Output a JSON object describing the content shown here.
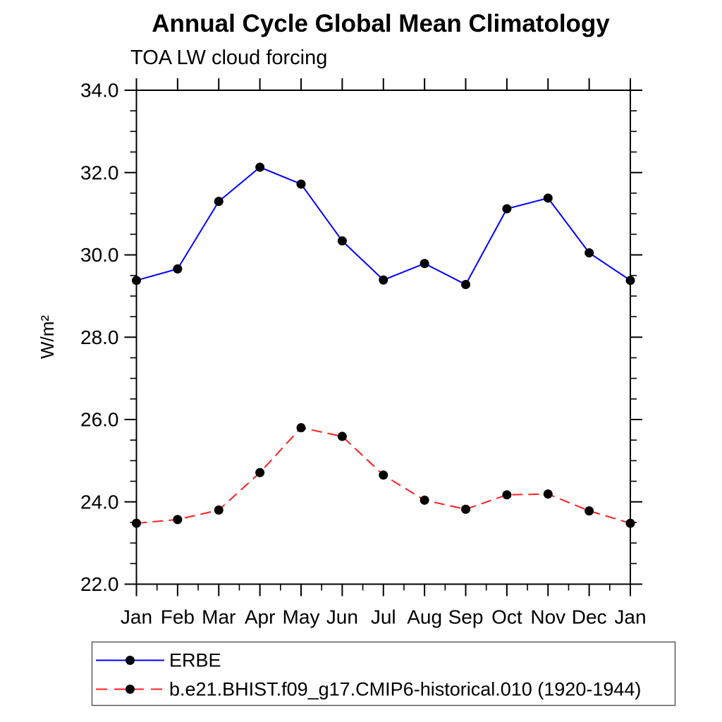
{
  "chart_data": {
    "type": "line",
    "title": "Annual Cycle Global Mean Climatology",
    "subtitle": "TOA LW cloud forcing",
    "ylabel": "W/m²",
    "xlabel": "",
    "categories": [
      "Jan",
      "Feb",
      "Mar",
      "Apr",
      "May",
      "Jun",
      "Jul",
      "Aug",
      "Sep",
      "Oct",
      "Nov",
      "Dec",
      "Jan"
    ],
    "ylim": [
      22.0,
      34.0
    ],
    "y_major_step": 2.0,
    "y_minor_step": 0.5,
    "y_tick_labels": [
      "22.0",
      "24.0",
      "26.0",
      "28.0",
      "30.0",
      "32.0",
      "34.0"
    ],
    "grid": false,
    "legend_position": "bottom-left",
    "background_color": "#ffffff",
    "axis_color": "#000000",
    "marker": {
      "shape": "circle",
      "color": "#000000",
      "radius_px": 6.5
    },
    "series": [
      {
        "name": "ERBE",
        "color": "#0000ff",
        "line_style": "solid",
        "values": [
          29.38,
          29.66,
          31.3,
          32.13,
          31.72,
          30.34,
          29.39,
          29.79,
          29.28,
          31.12,
          31.38,
          30.05,
          29.38
        ]
      },
      {
        "name": "b.e21.BHIST.f09_g17.CMIP6-historical.010 (1920-1944)",
        "color": "#ff2020",
        "line_style": "dashed",
        "values": [
          23.48,
          23.57,
          23.8,
          24.71,
          25.8,
          25.59,
          24.65,
          24.04,
          23.82,
          24.17,
          24.19,
          23.78,
          23.48
        ]
      }
    ]
  }
}
